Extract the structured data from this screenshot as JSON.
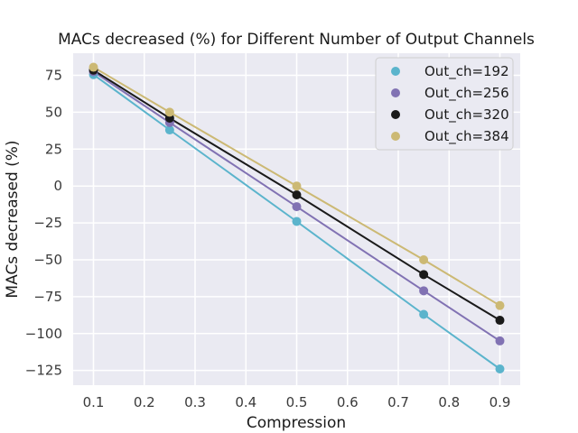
{
  "chart_data": {
    "type": "scatter",
    "title": "MACs decreased (%) for Different Number of Output Channels",
    "xlabel": "Compression",
    "ylabel": "MACs decreased (%)",
    "xlim": [
      0.06,
      0.94
    ],
    "ylim": [
      -135,
      90
    ],
    "xticks": [
      0.1,
      0.2,
      0.3,
      0.4,
      0.5,
      0.6,
      0.7,
      0.8,
      0.9
    ],
    "xtick_labels": [
      "0.1",
      "0.2",
      "0.3",
      "0.4",
      "0.5",
      "0.6",
      "0.7",
      "0.8",
      "0.9"
    ],
    "yticks": [
      75,
      50,
      25,
      0,
      -25,
      -50,
      -75,
      -100,
      -125
    ],
    "ytick_labels": [
      "75",
      "50",
      "25",
      "0",
      "−25",
      "−50",
      "−75",
      "−100",
      "−125"
    ],
    "grid": true,
    "legend_position": "top-right",
    "x": [
      0.1,
      0.25,
      0.5,
      0.75,
      0.9
    ],
    "series": [
      {
        "name": "Out_ch=192",
        "color": "#5bb4cc",
        "values": [
          75.5,
          38,
          -24,
          -87,
          -124
        ]
      },
      {
        "name": "Out_ch=256",
        "color": "#8172b3",
        "values": [
          77.5,
          43,
          -14,
          -71,
          -105
        ]
      },
      {
        "name": "Out_ch=320",
        "color": "#1a1a1a",
        "values": [
          78.5,
          46,
          -6,
          -60,
          -91
        ]
      },
      {
        "name": "Out_ch=384",
        "color": "#ccb974",
        "values": [
          80.5,
          50,
          0,
          -50,
          -81
        ]
      }
    ]
  }
}
